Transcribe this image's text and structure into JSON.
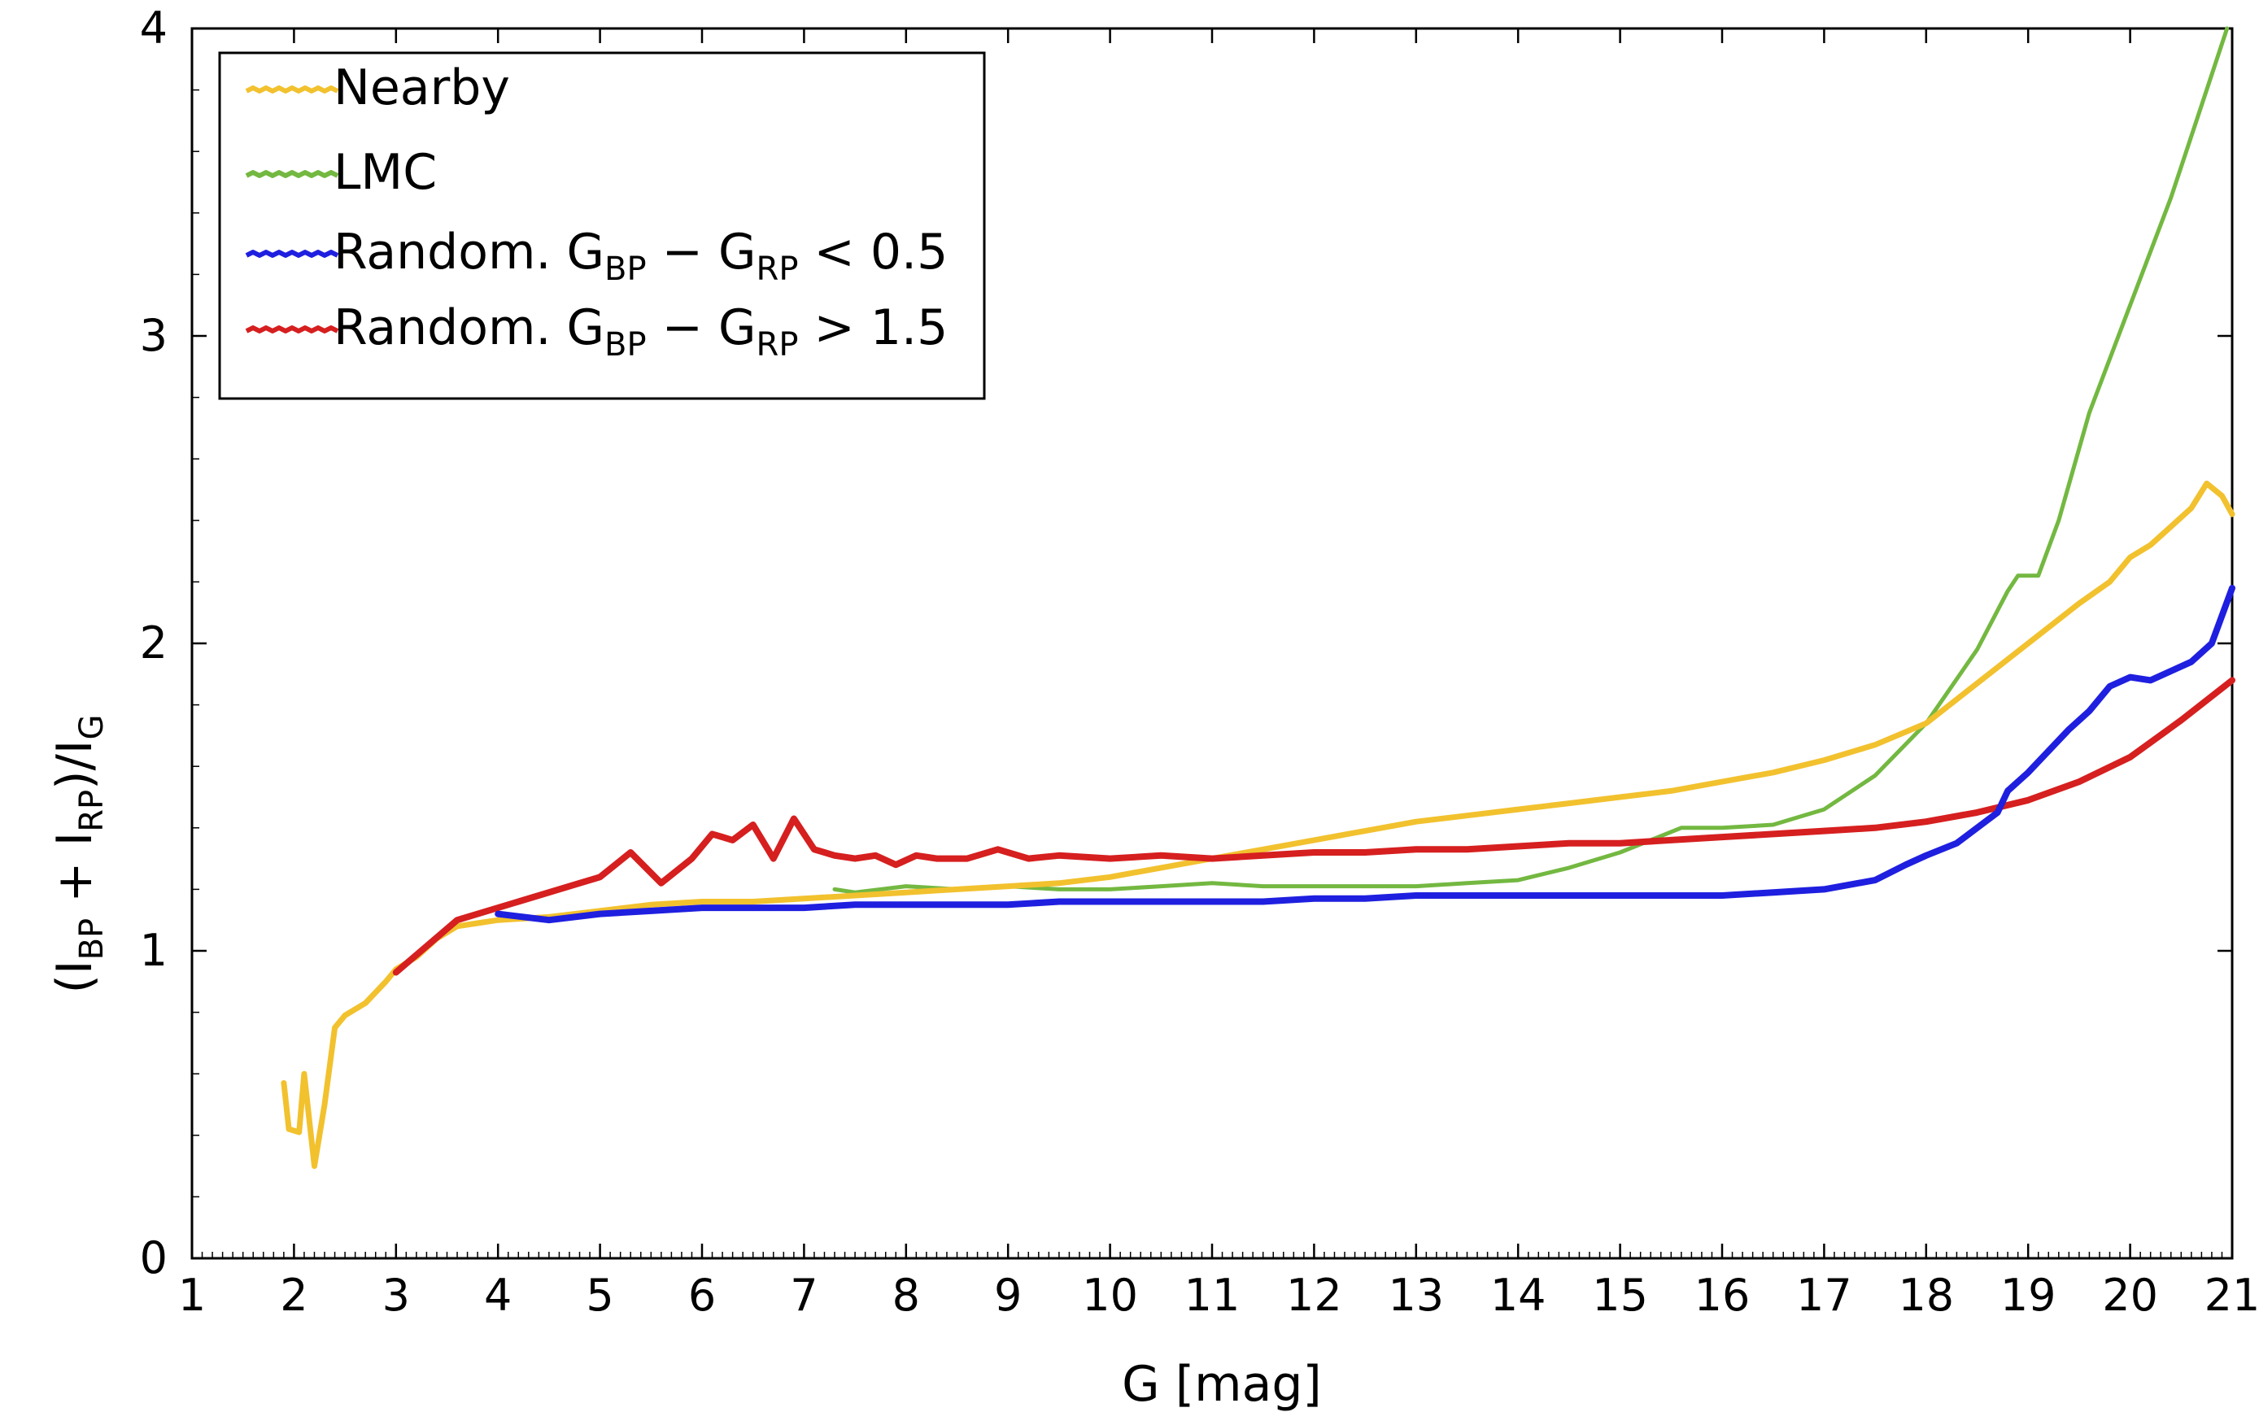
{
  "chart_data": {
    "type": "line",
    "title": "",
    "xlabel": "G [mag]",
    "ylabel_parts": [
      "(I",
      "BP",
      " + I",
      "RP",
      ")/I",
      "G"
    ],
    "xlim": [
      1,
      21
    ],
    "ylim": [
      0,
      4
    ],
    "x_ticks": [
      "1",
      "2",
      "3",
      "4",
      "5",
      "6",
      "7",
      "8",
      "9",
      "10",
      "11",
      "12",
      "13",
      "14",
      "15",
      "16",
      "17",
      "18",
      "19",
      "20",
      "21"
    ],
    "y_ticks": [
      "0",
      "1",
      "2",
      "3",
      "4"
    ],
    "legend": {
      "position": "top-left",
      "entries": [
        {
          "series": "nearby",
          "parts": [
            "Nearby"
          ]
        },
        {
          "series": "lmc",
          "parts": [
            "LMC"
          ]
        },
        {
          "series": "blue",
          "parts": [
            "Random. G",
            "BP",
            " − G",
            "RP",
            " < 0.5"
          ]
        },
        {
          "series": "red",
          "parts": [
            "Random. G",
            "BP",
            " − G",
            "RP",
            " > 1.5"
          ]
        }
      ]
    },
    "series": [
      {
        "id": "nearby",
        "name": "Nearby",
        "color": "#f2c12e",
        "points": [
          [
            1.9,
            0.57
          ],
          [
            1.95,
            0.42
          ],
          [
            2.05,
            0.41
          ],
          [
            2.1,
            0.6
          ],
          [
            2.2,
            0.3
          ],
          [
            2.3,
            0.5
          ],
          [
            2.4,
            0.75
          ],
          [
            2.5,
            0.79
          ],
          [
            2.7,
            0.83
          ],
          [
            2.9,
            0.9
          ],
          [
            3.0,
            0.94
          ],
          [
            3.2,
            0.98
          ],
          [
            3.4,
            1.04
          ],
          [
            3.6,
            1.08
          ],
          [
            3.8,
            1.09
          ],
          [
            4.0,
            1.1
          ],
          [
            4.5,
            1.11
          ],
          [
            5.0,
            1.13
          ],
          [
            5.5,
            1.15
          ],
          [
            6.0,
            1.16
          ],
          [
            6.5,
            1.16
          ],
          [
            7.0,
            1.17
          ],
          [
            7.5,
            1.18
          ],
          [
            8.0,
            1.19
          ],
          [
            8.5,
            1.2
          ],
          [
            9.0,
            1.21
          ],
          [
            9.5,
            1.22
          ],
          [
            10.0,
            1.24
          ],
          [
            10.5,
            1.27
          ],
          [
            11.0,
            1.3
          ],
          [
            11.5,
            1.33
          ],
          [
            12.0,
            1.36
          ],
          [
            12.5,
            1.39
          ],
          [
            13.0,
            1.42
          ],
          [
            13.5,
            1.44
          ],
          [
            14.0,
            1.46
          ],
          [
            14.5,
            1.48
          ],
          [
            15.0,
            1.5
          ],
          [
            15.5,
            1.52
          ],
          [
            16.0,
            1.55
          ],
          [
            16.5,
            1.58
          ],
          [
            17.0,
            1.62
          ],
          [
            17.5,
            1.67
          ],
          [
            18.0,
            1.74
          ],
          [
            18.5,
            1.87
          ],
          [
            19.0,
            2.0
          ],
          [
            19.5,
            2.13
          ],
          [
            19.8,
            2.2
          ],
          [
            20.0,
            2.28
          ],
          [
            20.2,
            2.32
          ],
          [
            20.4,
            2.38
          ],
          [
            20.6,
            2.44
          ],
          [
            20.75,
            2.52
          ],
          [
            20.9,
            2.48
          ],
          [
            21.0,
            2.42
          ]
        ]
      },
      {
        "id": "lmc",
        "name": "LMC",
        "color": "#73b841",
        "points": [
          [
            7.3,
            1.2
          ],
          [
            7.5,
            1.19
          ],
          [
            8.0,
            1.21
          ],
          [
            8.5,
            1.2
          ],
          [
            9.0,
            1.21
          ],
          [
            9.5,
            1.2
          ],
          [
            10.0,
            1.2
          ],
          [
            10.5,
            1.21
          ],
          [
            11.0,
            1.22
          ],
          [
            11.5,
            1.21
          ],
          [
            12.0,
            1.21
          ],
          [
            12.5,
            1.21
          ],
          [
            13.0,
            1.21
          ],
          [
            13.5,
            1.22
          ],
          [
            14.0,
            1.23
          ],
          [
            14.5,
            1.27
          ],
          [
            15.0,
            1.32
          ],
          [
            15.3,
            1.36
          ],
          [
            15.6,
            1.4
          ],
          [
            16.0,
            1.4
          ],
          [
            16.5,
            1.41
          ],
          [
            17.0,
            1.46
          ],
          [
            17.5,
            1.57
          ],
          [
            18.0,
            1.74
          ],
          [
            18.5,
            1.98
          ],
          [
            18.8,
            2.17
          ],
          [
            18.9,
            2.22
          ],
          [
            19.1,
            2.22
          ],
          [
            19.3,
            2.4
          ],
          [
            19.6,
            2.75
          ],
          [
            20.0,
            3.1
          ],
          [
            20.4,
            3.45
          ],
          [
            20.7,
            3.75
          ],
          [
            20.95,
            4.0
          ]
        ]
      },
      {
        "id": "blue",
        "name": "Random. GBP − GRP < 0.5",
        "color": "#1f1fe0",
        "points": [
          [
            4.0,
            1.12
          ],
          [
            4.5,
            1.1
          ],
          [
            5.0,
            1.12
          ],
          [
            5.5,
            1.13
          ],
          [
            6.0,
            1.14
          ],
          [
            6.5,
            1.14
          ],
          [
            7.0,
            1.14
          ],
          [
            7.5,
            1.15
          ],
          [
            8.0,
            1.15
          ],
          [
            8.5,
            1.15
          ],
          [
            9.0,
            1.15
          ],
          [
            9.5,
            1.16
          ],
          [
            10.0,
            1.16
          ],
          [
            10.5,
            1.16
          ],
          [
            11.0,
            1.16
          ],
          [
            11.5,
            1.16
          ],
          [
            12.0,
            1.17
          ],
          [
            12.5,
            1.17
          ],
          [
            13.0,
            1.18
          ],
          [
            13.5,
            1.18
          ],
          [
            14.0,
            1.18
          ],
          [
            14.5,
            1.18
          ],
          [
            15.0,
            1.18
          ],
          [
            15.5,
            1.18
          ],
          [
            16.0,
            1.18
          ],
          [
            16.5,
            1.19
          ],
          [
            17.0,
            1.2
          ],
          [
            17.5,
            1.23
          ],
          [
            17.8,
            1.28
          ],
          [
            18.0,
            1.31
          ],
          [
            18.3,
            1.35
          ],
          [
            18.5,
            1.4
          ],
          [
            18.7,
            1.45
          ],
          [
            18.8,
            1.52
          ],
          [
            19.0,
            1.58
          ],
          [
            19.2,
            1.65
          ],
          [
            19.4,
            1.72
          ],
          [
            19.6,
            1.78
          ],
          [
            19.8,
            1.86
          ],
          [
            20.0,
            1.89
          ],
          [
            20.2,
            1.88
          ],
          [
            20.4,
            1.91
          ],
          [
            20.6,
            1.94
          ],
          [
            20.8,
            2.0
          ],
          [
            21.0,
            2.18
          ]
        ]
      },
      {
        "id": "red",
        "name": "Random. GBP − GRP > 1.5",
        "color": "#d61f1f",
        "points": [
          [
            3.0,
            0.93
          ],
          [
            3.6,
            1.1
          ],
          [
            4.8,
            1.22
          ],
          [
            5.0,
            1.24
          ],
          [
            5.3,
            1.32
          ],
          [
            5.6,
            1.22
          ],
          [
            5.9,
            1.3
          ],
          [
            6.1,
            1.38
          ],
          [
            6.3,
            1.36
          ],
          [
            6.5,
            1.41
          ],
          [
            6.7,
            1.3
          ],
          [
            6.9,
            1.43
          ],
          [
            7.1,
            1.33
          ],
          [
            7.3,
            1.31
          ],
          [
            7.5,
            1.3
          ],
          [
            7.7,
            1.31
          ],
          [
            7.9,
            1.28
          ],
          [
            8.1,
            1.31
          ],
          [
            8.3,
            1.3
          ],
          [
            8.6,
            1.3
          ],
          [
            8.9,
            1.33
          ],
          [
            9.2,
            1.3
          ],
          [
            9.5,
            1.31
          ],
          [
            10.0,
            1.3
          ],
          [
            10.5,
            1.31
          ],
          [
            11.0,
            1.3
          ],
          [
            11.5,
            1.31
          ],
          [
            12.0,
            1.32
          ],
          [
            12.5,
            1.32
          ],
          [
            13.0,
            1.33
          ],
          [
            13.5,
            1.33
          ],
          [
            14.0,
            1.34
          ],
          [
            14.5,
            1.35
          ],
          [
            15.0,
            1.35
          ],
          [
            15.5,
            1.36
          ],
          [
            16.0,
            1.37
          ],
          [
            16.5,
            1.38
          ],
          [
            17.0,
            1.39
          ],
          [
            17.5,
            1.4
          ],
          [
            18.0,
            1.42
          ],
          [
            18.5,
            1.45
          ],
          [
            19.0,
            1.49
          ],
          [
            19.5,
            1.55
          ],
          [
            20.0,
            1.63
          ],
          [
            20.5,
            1.75
          ],
          [
            21.0,
            1.88
          ]
        ]
      }
    ]
  }
}
